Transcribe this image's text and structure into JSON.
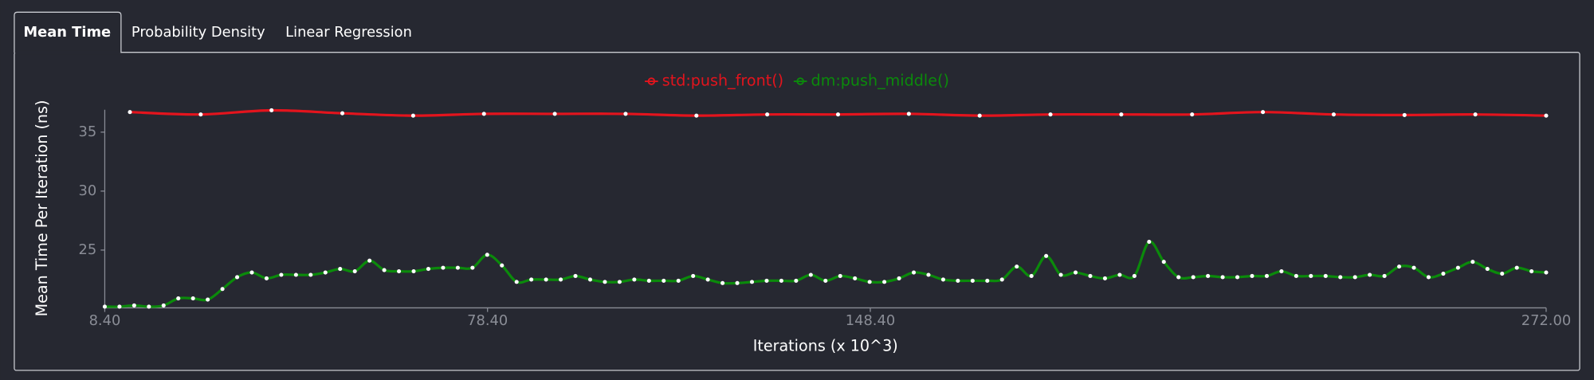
{
  "tabs": [
    "Mean Time",
    "Probability Density",
    "Linear Regression"
  ],
  "chart_data": {
    "type": "line",
    "xlabel": "Iterations (x 10^3)",
    "ylabel": "Mean Time Per Iteration (ns)",
    "xlim": [
      8.4,
      272.0
    ],
    "xticks": [
      {
        "value": 8.4,
        "label": "8.40"
      },
      {
        "value": 78.4,
        "label": "78.40"
      },
      {
        "value": 148.4,
        "label": "148.40"
      },
      {
        "value": 272.0,
        "label": "272.00"
      }
    ],
    "ylim": [
      20.1,
      36.9
    ],
    "yticks": [
      25,
      30,
      35
    ],
    "grid": false,
    "legend": "top",
    "series": [
      {
        "name": "std:push_front()",
        "color": "#e3141d",
        "x": [
          13.0,
          25.95,
          38.9,
          51.85,
          64.8,
          77.75,
          90.7,
          103.65,
          116.6,
          129.55,
          142.5,
          155.45,
          168.4,
          181.35,
          194.3,
          207.25,
          220.2,
          233.15,
          246.1,
          259.05,
          272.0
        ],
        "values": [
          36.7,
          36.5,
          36.85,
          36.6,
          36.4,
          36.55,
          36.55,
          36.55,
          36.4,
          36.5,
          36.5,
          36.55,
          36.4,
          36.5,
          36.5,
          36.5,
          36.7,
          36.5,
          36.45,
          36.5,
          36.4
        ]
      },
      {
        "name": "dm:push_middle()",
        "color": "#0b8a0b",
        "x": [
          8.4,
          11.09,
          13.78,
          16.47,
          19.16,
          21.85,
          24.54,
          27.23,
          29.92,
          32.61,
          35.3,
          37.99,
          40.68,
          43.37,
          46.06,
          48.75,
          51.44,
          54.13,
          56.82,
          59.51,
          62.2,
          64.89,
          67.58,
          70.27,
          72.96,
          75.65,
          78.34,
          81.03,
          83.72,
          86.41,
          89.1,
          91.79,
          94.48,
          97.17,
          99.86,
          102.55,
          105.24,
          107.93,
          110.62,
          113.31,
          116.0,
          118.69,
          121.38,
          124.07,
          126.76,
          129.45,
          132.14,
          134.83,
          137.52,
          140.21,
          142.9,
          145.59,
          148.28,
          150.97,
          153.66,
          156.35,
          159.04,
          161.73,
          164.42,
          167.11,
          169.8,
          172.49,
          175.18,
          177.87,
          180.56,
          183.25,
          185.94,
          188.63,
          191.32,
          194.01,
          196.7,
          199.39,
          202.08,
          204.77,
          207.46,
          210.15,
          212.84,
          215.53,
          218.22,
          220.91,
          223.6,
          226.29,
          228.98,
          231.67,
          234.36,
          237.05,
          239.74,
          242.43,
          245.12,
          247.81,
          250.5,
          253.19,
          255.88,
          258.57,
          261.26,
          263.95,
          266.64,
          269.33,
          272.0
        ],
        "values": [
          20.2,
          20.2,
          20.3,
          20.2,
          20.3,
          20.9,
          20.9,
          20.8,
          21.7,
          22.7,
          23.1,
          22.6,
          22.9,
          22.9,
          22.9,
          23.1,
          23.4,
          23.2,
          24.1,
          23.3,
          23.2,
          23.2,
          23.4,
          23.5,
          23.5,
          23.5,
          24.6,
          23.7,
          22.3,
          22.5,
          22.5,
          22.5,
          22.8,
          22.5,
          22.3,
          22.3,
          22.5,
          22.4,
          22.4,
          22.4,
          22.8,
          22.5,
          22.2,
          22.2,
          22.3,
          22.4,
          22.4,
          22.4,
          22.9,
          22.4,
          22.8,
          22.6,
          22.3,
          22.3,
          22.6,
          23.1,
          22.9,
          22.5,
          22.4,
          22.4,
          22.4,
          22.5,
          23.6,
          22.8,
          24.5,
          22.9,
          23.1,
          22.8,
          22.6,
          22.9,
          22.8,
          25.7,
          24.0,
          22.7,
          22.7,
          22.8,
          22.7,
          22.7,
          22.8,
          22.8,
          23.2,
          22.8,
          22.8,
          22.8,
          22.7,
          22.7,
          22.9,
          22.8,
          23.6,
          23.5,
          22.7,
          23.0,
          23.5,
          24.0,
          23.4,
          23.0,
          23.5,
          23.2,
          23.1
        ]
      }
    ]
  }
}
